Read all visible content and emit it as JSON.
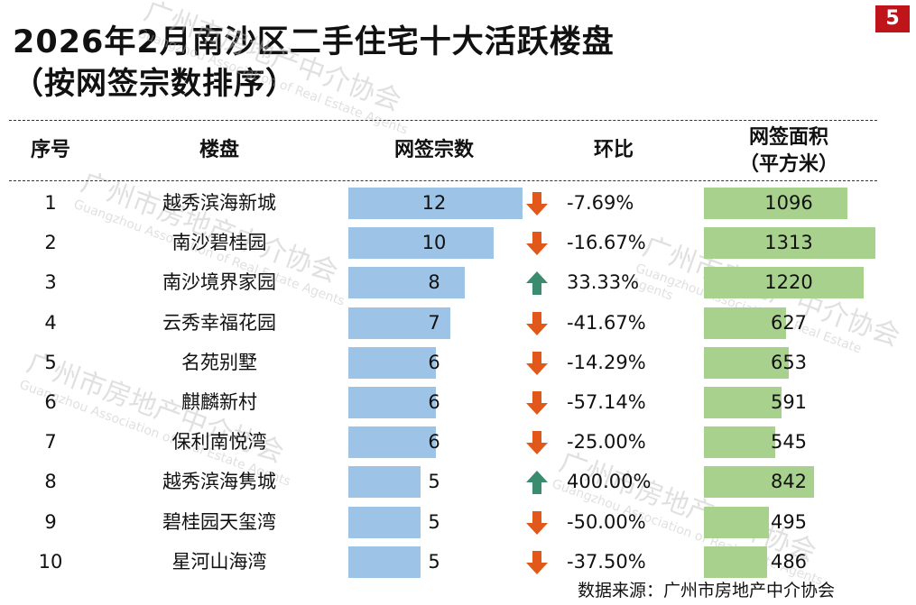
{
  "title_line1": "2026年2月南沙区二手住宅十大活跃楼盘",
  "title_line2": "（按网签宗数排序）",
  "page_number": "5",
  "headers": {
    "rank": "序号",
    "project": "楼盘",
    "count": "网签宗数",
    "mom": "环比",
    "area_line1": "网签面积",
    "area_line2": "（平方米）"
  },
  "source": "数据来源：广州市房地产中介协会",
  "watermark": {
    "cn": "广州市房地产中介协会",
    "en": "Guangzhou Association of Real Estate Agents"
  },
  "colors": {
    "count_bar": "#9dc3e6",
    "area_bar": "#a9d18e",
    "arrow_down": "#e2571a",
    "arrow_up": "#3a8c6e",
    "badge": "#c0141b"
  },
  "chart_data": {
    "type": "table",
    "columns": [
      "序号",
      "楼盘",
      "网签宗数",
      "环比",
      "网签面积（平方米）"
    ],
    "rows": [
      {
        "rank": "1",
        "project": "越秀滨海新城",
        "count": 12,
        "mom": "-7.69%",
        "trend": "down",
        "area": 1096
      },
      {
        "rank": "2",
        "project": "南沙碧桂园",
        "count": 10,
        "mom": "-16.67%",
        "trend": "down",
        "area": 1313
      },
      {
        "rank": "3",
        "project": "南沙境界家园",
        "count": 8,
        "mom": "33.33%",
        "trend": "up",
        "area": 1220
      },
      {
        "rank": "4",
        "project": "云秀幸福花园",
        "count": 7,
        "mom": "-41.67%",
        "trend": "down",
        "area": 627
      },
      {
        "rank": "5",
        "project": "名苑别墅",
        "count": 6,
        "mom": "-14.29%",
        "trend": "down",
        "area": 653
      },
      {
        "rank": "6",
        "project": "麒麟新村",
        "count": 6,
        "mom": "-57.14%",
        "trend": "down",
        "area": 591
      },
      {
        "rank": "7",
        "project": "保利南悦湾",
        "count": 6,
        "mom": "-25.00%",
        "trend": "down",
        "area": 545
      },
      {
        "rank": "8",
        "project": "越秀滨海隽城",
        "count": 5,
        "mom": "400.00%",
        "trend": "up",
        "area": 842
      },
      {
        "rank": "9",
        "project": "碧桂园天玺湾",
        "count": 5,
        "mom": "-50.00%",
        "trend": "down",
        "area": 495
      },
      {
        "rank": "10",
        "project": "星河山海湾",
        "count": 5,
        "mom": "-37.50%",
        "trend": "down",
        "area": 486
      }
    ],
    "count_max": 12,
    "area_max": 1313
  }
}
